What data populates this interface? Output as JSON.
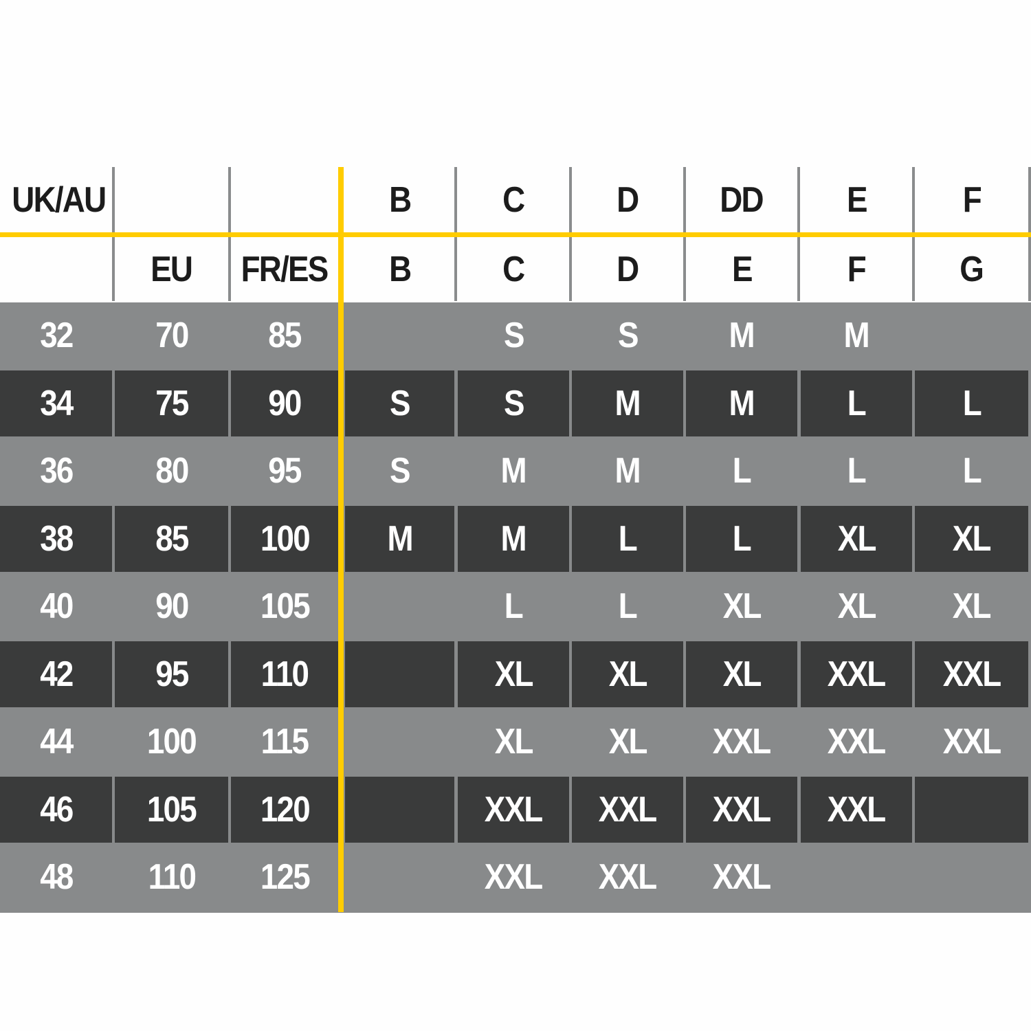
{
  "header_row_1": [
    "UK/AU",
    "",
    "",
    "B",
    "C",
    "D",
    "DD",
    "E",
    "F"
  ],
  "header_row_2": [
    "",
    "EU",
    "FR/ES",
    "B",
    "C",
    "D",
    "E",
    "F",
    "G"
  ],
  "rows": [
    [
      "32",
      "70",
      "85",
      "",
      "S",
      "S",
      "M",
      "M",
      ""
    ],
    [
      "34",
      "75",
      "90",
      "S",
      "S",
      "M",
      "M",
      "L",
      "L"
    ],
    [
      "36",
      "80",
      "95",
      "S",
      "M",
      "M",
      "L",
      "L",
      "L"
    ],
    [
      "38",
      "85",
      "100",
      "M",
      "M",
      "L",
      "L",
      "XL",
      "XL"
    ],
    [
      "40",
      "90",
      "105",
      "",
      "L",
      "L",
      "XL",
      "XL",
      "XL"
    ],
    [
      "42",
      "95",
      "110",
      "",
      "XL",
      "XL",
      "XL",
      "XXL",
      "XXL"
    ],
    [
      "44",
      "100",
      "115",
      "",
      "XL",
      "XL",
      "XXL",
      "XXL",
      "XXL"
    ],
    [
      "46",
      "105",
      "120",
      "",
      "XXL",
      "XXL",
      "XXL",
      "XXL",
      ""
    ],
    [
      "48",
      "110",
      "125",
      "",
      "XXL",
      "XXL",
      "XXL",
      "",
      ""
    ]
  ],
  "colors": {
    "accent": "#ffcc00",
    "row_light": "#888a8b",
    "row_dark": "#3a3b3b",
    "header_text": "#1c1c1c"
  }
}
